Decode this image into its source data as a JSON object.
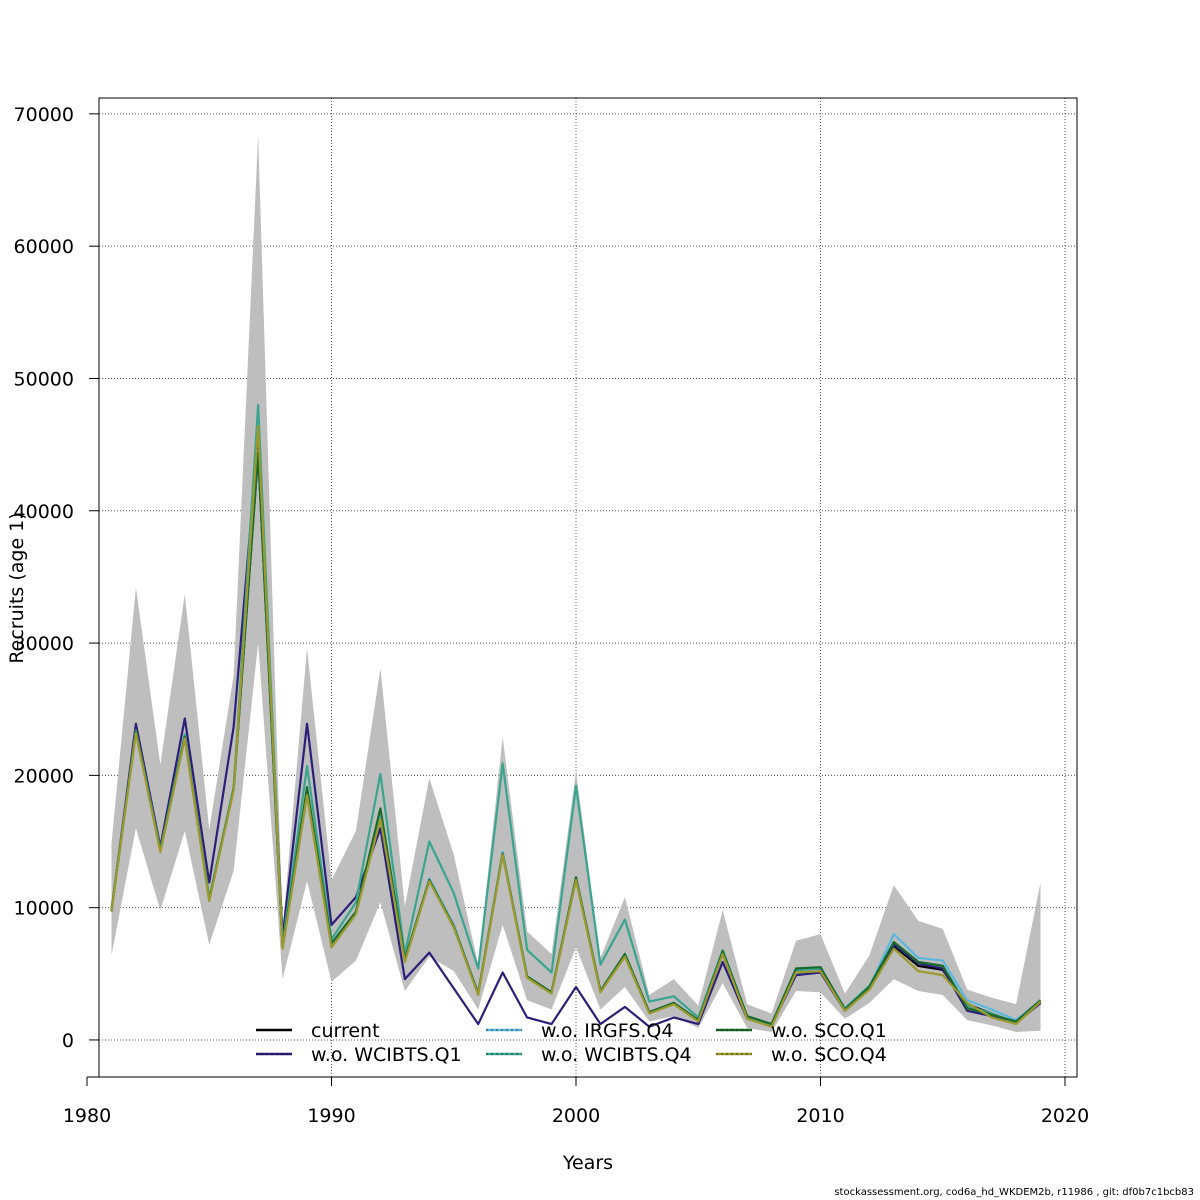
{
  "chart_data": {
    "type": "line",
    "title": "",
    "xlabel": "Years",
    "ylabel": "Recruits (age 1)",
    "xlim": [
      1980,
      2020
    ],
    "ylim": [
      -2800,
      71200
    ],
    "xticks": [
      1980,
      1990,
      2000,
      2010,
      2020
    ],
    "yticks": [
      0,
      10000,
      20000,
      30000,
      40000,
      50000,
      60000,
      70000
    ],
    "grid": true,
    "legend_position": "bottom-center",
    "x": [
      1981,
      1982,
      1983,
      1984,
      1985,
      1986,
      1987,
      1988,
      1989,
      1990,
      1991,
      1992,
      1993,
      1994,
      1995,
      1996,
      1997,
      1998,
      1999,
      2000,
      2001,
      2002,
      2003,
      2004,
      2005,
      2006,
      2007,
      2008,
      2009,
      2010,
      2011,
      2012,
      2013,
      2014,
      2015,
      2016,
      2017,
      2018,
      2019
    ],
    "band": {
      "color": "#bebebe",
      "upper": [
        14800,
        34200,
        20800,
        33700,
        15900,
        27600,
        68400,
        8400,
        29600,
        12100,
        15800,
        28100,
        10100,
        19800,
        14000,
        5700,
        22900,
        8200,
        6500,
        20300,
        6200,
        10800,
        3400,
        4600,
        2600,
        9800,
        2700,
        2000,
        7500,
        8000,
        3500,
        6400,
        11700,
        9000,
        8400,
        3800,
        3200,
        2700,
        11900
      ],
      "lower": [
        6400,
        16000,
        9800,
        15800,
        7200,
        12800,
        30000,
        4600,
        12000,
        4400,
        6000,
        10400,
        3700,
        6300,
        5200,
        2300,
        8700,
        3000,
        2300,
        7000,
        2300,
        4000,
        1400,
        1800,
        900,
        4300,
        900,
        600,
        3700,
        3600,
        1600,
        2800,
        4600,
        3700,
        3400,
        1500,
        1100,
        600,
        700
      ]
    },
    "series": [
      {
        "name": "current",
        "color": "#000000",
        "values": [
          9800,
          23300,
          14300,
          22900,
          10600,
          19000,
          44300,
          7000,
          18600,
          7100,
          9600,
          16800,
          6000,
          12100,
          8600,
          3500,
          14100,
          4800,
          3600,
          12200,
          3700,
          6400,
          2100,
          2800,
          1500,
          6600,
          1700,
          1100,
          5300,
          5400,
          2300,
          3900,
          7100,
          5600,
          5300,
          2700,
          2000,
          1300,
          2800
        ]
      },
      {
        "name": "w.o. WCIBTS.Q1",
        "color": "#2c1f7a",
        "values": [
          9700,
          23900,
          14600,
          24300,
          11900,
          23700,
          45700,
          7800,
          23900,
          8700,
          10800,
          16000,
          4600,
          6600,
          3900,
          1200,
          5100,
          1700,
          1200,
          4000,
          1200,
          2500,
          1000,
          1700,
          1200,
          5900,
          1600,
          1100,
          4900,
          5100,
          2200,
          3900,
          7200,
          5800,
          5400,
          2200,
          1800,
          1300,
          2800
        ]
      },
      {
        "name": "w.o. IRGFS.Q4",
        "color": "#5ab7e0",
        "values": [
          9800,
          23300,
          14400,
          22900,
          10600,
          19000,
          44500,
          7000,
          18700,
          7100,
          9600,
          16900,
          6000,
          12200,
          8700,
          3500,
          14200,
          4800,
          3600,
          12300,
          3700,
          6500,
          2100,
          2800,
          1500,
          6600,
          1700,
          1100,
          5400,
          5500,
          2300,
          4000,
          8000,
          6200,
          6000,
          3000,
          2300,
          1500,
          3000
        ]
      },
      {
        "name": "w.o. WCIBTS.Q4",
        "color": "#3aa58f",
        "values": [
          9800,
          23400,
          14400,
          23100,
          10700,
          19100,
          48000,
          7200,
          20700,
          7600,
          10400,
          20100,
          6500,
          15000,
          11100,
          5400,
          20900,
          6800,
          5100,
          19200,
          5700,
          9100,
          2900,
          3300,
          1700,
          6800,
          1800,
          1200,
          5300,
          5400,
          2400,
          4100,
          7400,
          5900,
          5600,
          2600,
          2000,
          1300,
          2900
        ]
      },
      {
        "name": "w.o. SCO.Q1",
        "color": "#1a6b2a",
        "values": [
          9800,
          23300,
          14300,
          22900,
          10600,
          19000,
          44400,
          7000,
          19100,
          7300,
          9700,
          17500,
          6100,
          12100,
          8600,
          3500,
          14100,
          4800,
          3600,
          12300,
          3700,
          6500,
          2100,
          2800,
          1500,
          6700,
          1800,
          1200,
          5400,
          5500,
          2300,
          4000,
          7400,
          5900,
          5600,
          2400,
          1900,
          1400,
          3000
        ]
      },
      {
        "name": "w.o. SCO.Q4",
        "color": "#9c9a2e",
        "values": [
          9700,
          23200,
          14200,
          22800,
          10500,
          18900,
          46400,
          6900,
          18500,
          7000,
          9500,
          16700,
          5900,
          12000,
          8500,
          3400,
          14000,
          4700,
          3500,
          12100,
          3600,
          6300,
          2000,
          2700,
          1400,
          6500,
          1600,
          1000,
          5100,
          5200,
          2200,
          3800,
          6900,
          5200,
          4900,
          2800,
          1700,
          1200,
          2900
        ]
      }
    ]
  },
  "footer": {
    "text": "stockassessment.org, cod6a_hd_WKDEM2b, r11986 , git: df0b7c1bcb83"
  }
}
